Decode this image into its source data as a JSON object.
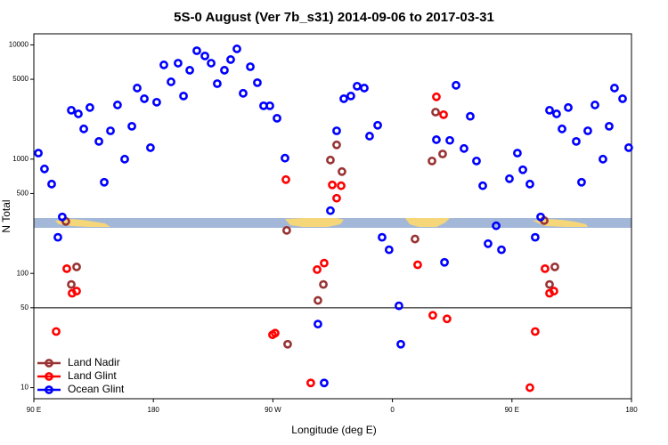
{
  "chart_data": {
    "type": "scatter",
    "title": "5S-0 August (Ver 7b_s31)   2014-09-06 to 2017-03-31",
    "x_label": "Longitude (deg E)",
    "y_label": "N Total",
    "log_y": true,
    "xlim": [
      90,
      540
    ],
    "ylim": [
      8,
      12500
    ],
    "xticks": [
      {
        "value": 90,
        "label": "90 E"
      },
      180,
      {
        "value": 270,
        "label": "90 W"
      },
      {
        "value": 360,
        "label": "0"
      },
      {
        "value": 450,
        "label": "90 E"
      },
      {
        "value": 540,
        "label": "180"
      }
    ],
    "yticks": [
      10,
      50,
      100,
      500,
      1000,
      5000,
      10000
    ],
    "hline": 50,
    "legend": "lower left",
    "series": [
      {
        "name": "Land Nadir",
        "color": "#993333",
        "x": [
          114.1,
          122.2,
          118.2,
          280.4,
          281.1,
          303.9,
          308.0,
          313.3,
          318.0,
          322.0,
          377.0,
          389.8,
          392.5,
          397.8,
          474.3,
          482.3,
          478.3
        ],
        "values": [
          285,
          114,
          80,
          238,
          24,
          58,
          80,
          982,
          1333,
          778,
          200,
          964,
          2580,
          1110,
          290,
          114,
          80
        ]
      },
      {
        "name": "Land Glint",
        "color": "#ff0000",
        "x": [
          106.8,
          114.8,
          118.8,
          122.2,
          269.7,
          271.7,
          279.8,
          298.5,
          303.3,
          308.6,
          314.7,
          318.0,
          321.4,
          379.0,
          390.4,
          393.1,
          398.5,
          401.1,
          463.5,
          467.5,
          474.9,
          478.3,
          481.6
        ],
        "values": [
          31,
          110,
          67,
          70,
          29,
          30,
          662,
          11,
          108,
          123,
          595,
          455,
          585,
          119,
          43,
          3510,
          2450,
          40,
          10,
          31,
          110,
          67,
          70
        ]
      },
      {
        "name": "Ocean Glint",
        "color": "#0000ff",
        "x": [
          93.4,
          98.0,
          103.4,
          111.4,
          108.1,
          118.2,
          123.5,
          127.6,
          132.2,
          139.0,
          143.0,
          147.7,
          153.0,
          158.4,
          163.8,
          167.8,
          173.2,
          177.8,
          182.5,
          187.9,
          193.3,
          198.6,
          202.7,
          207.4,
          212.7,
          218.8,
          223.5,
          228.1,
          233.5,
          238.2,
          242.9,
          247.6,
          253.0,
          258.3,
          263.0,
          267.7,
          273.1,
          279.1,
          303.9,
          308.6,
          313.3,
          318.0,
          323.4,
          328.7,
          333.4,
          338.8,
          342.8,
          348.9,
          352.2,
          357.5,
          364.9,
          366.3,
          393.1,
          399.2,
          403.2,
          407.9,
          413.9,
          418.6,
          423.3,
          428.0,
          432.0,
          438.1,
          442.1,
          448.1,
          454.1,
          458.2,
          463.5,
          467.5,
          471.6,
          478.3,
          483.6,
          487.7,
          492.4,
          498.4,
          502.4,
          507.1,
          512.5,
          518.5,
          523.2,
          527.2,
          533.3,
          537.9
        ],
        "values": [
          1130,
          821,
          605,
          312,
          207,
          2680,
          2490,
          1840,
          2830,
          1430,
          628,
          1770,
          2980,
          1000,
          1940,
          4190,
          3380,
          1260,
          3150,
          6680,
          4750,
          6920,
          3570,
          6000,
          8890,
          8000,
          6920,
          4580,
          6000,
          7440,
          9230,
          3770,
          6440,
          4670,
          2930,
          2930,
          2280,
          1020,
          36,
          11,
          354,
          1770,
          3380,
          3570,
          4350,
          4190,
          1590,
          1980,
          207,
          161,
          52,
          24,
          1480,
          125,
          1460,
          4430,
          1240,
          2370,
          964,
          585,
          182,
          261,
          161,
          674,
          1130,
          807,
          605,
          207,
          312,
          2680,
          2490,
          1840,
          2830,
          1430,
          628,
          1770,
          2980,
          1000,
          1940,
          4190,
          3380,
          1260
        ]
      }
    ]
  }
}
